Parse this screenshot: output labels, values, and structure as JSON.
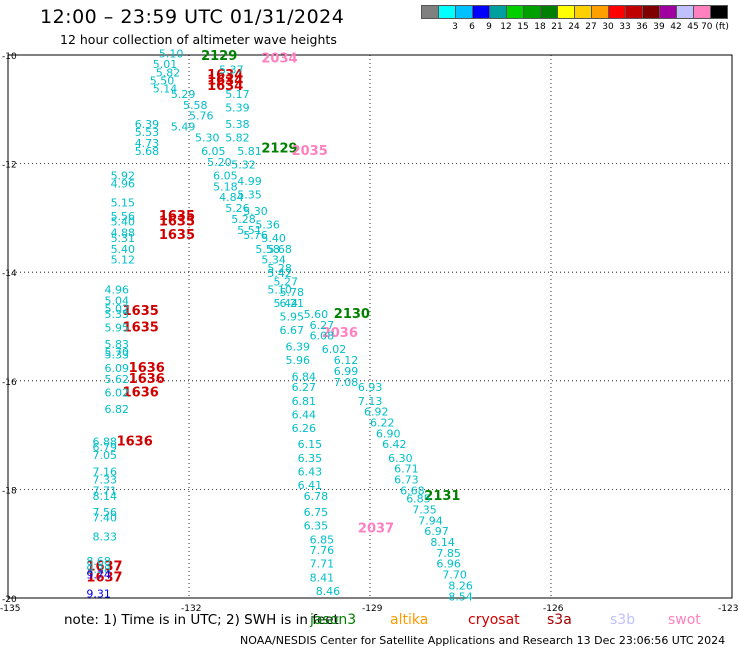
{
  "title": "12:00 – 23:59 UTC 01/31/2024",
  "subtitle": "12 hour collection of altimeter wave heights",
  "colorbar": {
    "labels": [
      "",
      "3",
      "6",
      "9",
      "12",
      "15",
      "18",
      "21",
      "24",
      "27",
      "30",
      "33",
      "36",
      "39",
      "42",
      "45",
      "70 (ft)"
    ],
    "colors": [
      "#808080",
      "#00ffff",
      "#00c0ff",
      "#0000ff",
      "#00a0a0",
      "#00d000",
      "#00a000",
      "#008000",
      "#ffff00",
      "#ffd000",
      "#ffa000",
      "#ff0000",
      "#c00000",
      "#800000",
      "#a000a0",
      "#c0c0ff",
      "#ff80c0",
      "#000000"
    ]
  },
  "footer": {
    "note": "note: 1) Time is in UTC; 2) SWH is in feet",
    "credit": "NOAA/NESDIS Center for Satellite Applications and Research   13 Dec 23:06:56 UTC 2024"
  },
  "chart_data": {
    "type": "scatter",
    "xlabel": "",
    "ylabel": "",
    "xlim": [
      -135,
      -123
    ],
    "ylim": [
      -20,
      -10
    ],
    "x_ticks": [
      -135,
      -132,
      -129,
      -126,
      -123
    ],
    "x_tick_labels": [
      "-135",
      "-132",
      "-129",
      "-126",
      "-123"
    ],
    "y_ticks": [
      -10,
      -12,
      -14,
      -16,
      -18,
      -20
    ],
    "y_tick_labels": [
      "-10",
      "-12",
      "-14",
      "-16",
      "-18",
      "-20"
    ],
    "grid": true,
    "series": [
      {
        "name": "jason3",
        "color": "#008000",
        "role": "time",
        "points": [
          {
            "x": -131.8,
            "y": -10.0,
            "label": "2129"
          },
          {
            "x": -130.8,
            "y": -11.7,
            "label": "2129"
          },
          {
            "x": -129.6,
            "y": -14.75,
            "label": "2130"
          },
          {
            "x": -128.1,
            "y": -18.1,
            "label": "2131"
          }
        ]
      },
      {
        "name": "cryosat",
        "color": "#d00000",
        "role": "time",
        "points": [
          {
            "x": -131.7,
            "y": -10.35,
            "label": "1634"
          },
          {
            "x": -131.7,
            "y": -10.45,
            "label": "1634"
          },
          {
            "x": -131.7,
            "y": -10.55,
            "label": "1634"
          },
          {
            "x": -132.5,
            "y": -12.95,
            "label": "1635"
          },
          {
            "x": -132.5,
            "y": -13.05,
            "label": "1635"
          },
          {
            "x": -132.5,
            "y": -13.3,
            "label": "1635"
          },
          {
            "x": -133.1,
            "y": -14.7,
            "label": "1635"
          },
          {
            "x": -133.1,
            "y": -15.0,
            "label": "1635"
          },
          {
            "x": -133.0,
            "y": -15.75,
            "label": "1636"
          },
          {
            "x": -133.0,
            "y": -15.95,
            "label": "1636"
          },
          {
            "x": -133.1,
            "y": -16.2,
            "label": "1636"
          },
          {
            "x": -133.2,
            "y": -17.1,
            "label": "1636"
          },
          {
            "x": -133.7,
            "y": -19.4,
            "label": "1637"
          },
          {
            "x": -133.7,
            "y": -19.6,
            "label": "1637"
          }
        ]
      },
      {
        "name": "swot",
        "color": "#ff80c0",
        "role": "time",
        "points": [
          {
            "x": -130.8,
            "y": -10.05,
            "label": "2034"
          },
          {
            "x": -130.3,
            "y": -11.75,
            "label": "2035"
          },
          {
            "x": -129.8,
            "y": -15.1,
            "label": "2036"
          },
          {
            "x": -129.2,
            "y": -18.7,
            "label": "2037"
          }
        ]
      },
      {
        "name": "SWH",
        "color": "#00bfc8",
        "role": "wave height (ft)",
        "points": [
          {
            "x": -132.5,
            "y": -9.95,
            "value": 5.1
          },
          {
            "x": -132.6,
            "y": -10.15,
            "value": 5.01
          },
          {
            "x": -132.55,
            "y": -10.3,
            "value": 5.82
          },
          {
            "x": -132.65,
            "y": -10.45,
            "value": 5.5
          },
          {
            "x": -132.6,
            "y": -10.6,
            "value": 5.14
          },
          {
            "x": -132.3,
            "y": -10.7,
            "value": 5.29
          },
          {
            "x": -131.5,
            "y": -10.25,
            "value": 5.37
          },
          {
            "x": -131.4,
            "y": -10.7,
            "value": 5.17
          },
          {
            "x": -132.1,
            "y": -10.9,
            "value": 5.58
          },
          {
            "x": -131.4,
            "y": -10.95,
            "value": 5.39
          },
          {
            "x": -132.0,
            "y": -11.1,
            "value": 5.76
          },
          {
            "x": -132.3,
            "y": -11.3,
            "value": 5.49
          },
          {
            "x": -131.4,
            "y": -11.25,
            "value": 5.38
          },
          {
            "x": -132.9,
            "y": -11.25,
            "value": 6.39
          },
          {
            "x": -132.9,
            "y": -11.4,
            "value": 5.53
          },
          {
            "x": -131.9,
            "y": -11.5,
            "value": 5.3
          },
          {
            "x": -131.4,
            "y": -11.5,
            "value": 5.82
          },
          {
            "x": -132.9,
            "y": -11.6,
            "value": 4.73
          },
          {
            "x": -132.9,
            "y": -11.75,
            "value": 5.68
          },
          {
            "x": -131.8,
            "y": -11.75,
            "value": 6.05
          },
          {
            "x": -131.2,
            "y": -11.75,
            "value": 5.81
          },
          {
            "x": -131.7,
            "y": -11.95,
            "value": 5.2
          },
          {
            "x": -131.3,
            "y": -12.0,
            "value": 5.32
          },
          {
            "x": -133.3,
            "y": -12.2,
            "value": 5.92
          },
          {
            "x": -131.6,
            "y": -12.2,
            "value": 6.05
          },
          {
            "x": -131.2,
            "y": -12.3,
            "value": 4.99
          },
          {
            "x": -133.3,
            "y": -12.35,
            "value": 4.96
          },
          {
            "x": -131.6,
            "y": -12.4,
            "value": 5.18
          },
          {
            "x": -131.2,
            "y": -12.55,
            "value": 5.35
          },
          {
            "x": -131.5,
            "y": -12.6,
            "value": 4.84
          },
          {
            "x": -133.3,
            "y": -12.7,
            "value": 5.15
          },
          {
            "x": -131.4,
            "y": -12.8,
            "value": 5.26
          },
          {
            "x": -131.1,
            "y": -12.85,
            "value": 5.3
          },
          {
            "x": -133.3,
            "y": -12.95,
            "value": 5.56
          },
          {
            "x": -133.3,
            "y": -13.05,
            "value": 5.4
          },
          {
            "x": -131.3,
            "y": -13.0,
            "value": 5.28
          },
          {
            "x": -130.9,
            "y": -13.1,
            "value": 5.36
          },
          {
            "x": -133.3,
            "y": -13.25,
            "value": 4.88
          },
          {
            "x": -133.3,
            "y": -13.35,
            "value": 5.31
          },
          {
            "x": -131.2,
            "y": -13.2,
            "value": 5.51
          },
          {
            "x": -130.8,
            "y": -13.35,
            "value": 5.4
          },
          {
            "x": -131.1,
            "y": -13.3,
            "value": 5.76
          },
          {
            "x": -133.3,
            "y": -13.55,
            "value": 5.4
          },
          {
            "x": -130.9,
            "y": -13.55,
            "value": 5.58
          },
          {
            "x": -130.7,
            "y": -13.55,
            "value": 5.68
          },
          {
            "x": -133.3,
            "y": -13.75,
            "value": 5.12
          },
          {
            "x": -130.8,
            "y": -13.75,
            "value": 5.34
          },
          {
            "x": -130.7,
            "y": -13.9,
            "value": 5.28
          },
          {
            "x": -130.7,
            "y": -14.0,
            "value": 5.42
          },
          {
            "x": -130.6,
            "y": -14.15,
            "value": 5.27
          },
          {
            "x": -130.5,
            "y": -14.35,
            "value": 5.78
          },
          {
            "x": -130.7,
            "y": -14.3,
            "value": 5.1
          },
          {
            "x": -133.4,
            "y": -14.3,
            "value": 4.96
          },
          {
            "x": -133.4,
            "y": -14.5,
            "value": 5.04
          },
          {
            "x": -133.4,
            "y": -14.65,
            "value": 5.02
          },
          {
            "x": -133.4,
            "y": -14.75,
            "value": 5.35
          },
          {
            "x": -130.6,
            "y": -14.55,
            "value": 5.44
          },
          {
            "x": -130.5,
            "y": -14.55,
            "value": 6.21
          },
          {
            "x": -130.5,
            "y": -14.8,
            "value": 5.95
          },
          {
            "x": -130.1,
            "y": -14.75,
            "value": 5.6
          },
          {
            "x": -133.4,
            "y": -15.0,
            "value": 5.95
          },
          {
            "x": -130.0,
            "y": -14.95,
            "value": 6.27
          },
          {
            "x": -130.5,
            "y": -15.05,
            "value": 6.67
          },
          {
            "x": -130.0,
            "y": -15.15,
            "value": 6.08
          },
          {
            "x": -133.4,
            "y": -15.3,
            "value": 5.83
          },
          {
            "x": -133.4,
            "y": -15.45,
            "value": 5.7
          },
          {
            "x": -133.4,
            "y": -15.5,
            "value": 5.33
          },
          {
            "x": -130.4,
            "y": -15.35,
            "value": 6.39
          },
          {
            "x": -129.8,
            "y": -15.4,
            "value": 6.02
          },
          {
            "x": -129.6,
            "y": -15.6,
            "value": 6.12
          },
          {
            "x": -130.4,
            "y": -15.6,
            "value": 5.96
          },
          {
            "x": -133.4,
            "y": -15.75,
            "value": 6.09
          },
          {
            "x": -129.6,
            "y": -15.8,
            "value": 6.99
          },
          {
            "x": -133.4,
            "y": -15.95,
            "value": 5.62
          },
          {
            "x": -130.3,
            "y": -15.9,
            "value": 6.84
          },
          {
            "x": -129.6,
            "y": -16.0,
            "value": 7.08
          },
          {
            "x": -130.3,
            "y": -16.1,
            "value": 6.27
          },
          {
            "x": -129.2,
            "y": -16.1,
            "value": 6.93
          },
          {
            "x": -133.4,
            "y": -16.2,
            "value": 6.02
          },
          {
            "x": -130.3,
            "y": -16.35,
            "value": 6.81
          },
          {
            "x": -129.2,
            "y": -16.35,
            "value": 7.13
          },
          {
            "x": -133.4,
            "y": -16.5,
            "value": 6.82
          },
          {
            "x": -130.3,
            "y": -16.6,
            "value": 6.44
          },
          {
            "x": -129.1,
            "y": -16.55,
            "value": 6.92
          },
          {
            "x": -129.0,
            "y": -16.75,
            "value": 6.22
          },
          {
            "x": -130.3,
            "y": -16.85,
            "value": 6.26
          },
          {
            "x": -128.9,
            "y": -16.95,
            "value": 6.9
          },
          {
            "x": -133.6,
            "y": -17.1,
            "value": 6.88
          },
          {
            "x": -133.6,
            "y": -17.2,
            "value": 6.79
          },
          {
            "x": -130.2,
            "y": -17.15,
            "value": 6.15
          },
          {
            "x": -128.8,
            "y": -17.15,
            "value": 6.42
          },
          {
            "x": -133.6,
            "y": -17.35,
            "value": 7.05
          },
          {
            "x": -130.2,
            "y": -17.4,
            "value": 6.35
          },
          {
            "x": -128.7,
            "y": -17.4,
            "value": 6.3
          },
          {
            "x": -133.6,
            "y": -17.65,
            "value": 7.16
          },
          {
            "x": -130.2,
            "y": -17.65,
            "value": 6.43
          },
          {
            "x": -128.6,
            "y": -17.6,
            "value": 6.71
          },
          {
            "x": -133.6,
            "y": -17.8,
            "value": 7.33
          },
          {
            "x": -128.6,
            "y": -17.8,
            "value": 6.73
          },
          {
            "x": -130.2,
            "y": -17.9,
            "value": 6.41
          },
          {
            "x": -133.6,
            "y": -18.0,
            "value": 7.71
          },
          {
            "x": -128.5,
            "y": -18.0,
            "value": 6.68
          },
          {
            "x": -133.6,
            "y": -18.1,
            "value": 8.14
          },
          {
            "x": -130.1,
            "y": -18.1,
            "value": 6.78
          },
          {
            "x": -128.4,
            "y": -18.15,
            "value": 6.85
          },
          {
            "x": -128.3,
            "y": -18.35,
            "value": 7.35
          },
          {
            "x": -133.6,
            "y": -18.4,
            "value": 7.56
          },
          {
            "x": -130.1,
            "y": -18.4,
            "value": 6.75
          },
          {
            "x": -133.6,
            "y": -18.5,
            "value": 7.4
          },
          {
            "x": -128.2,
            "y": -18.55,
            "value": 7.94
          },
          {
            "x": -130.1,
            "y": -18.65,
            "value": 6.35
          },
          {
            "x": -128.1,
            "y": -18.75,
            "value": 6.97
          },
          {
            "x": -133.6,
            "y": -18.85,
            "value": 8.33
          },
          {
            "x": -130.0,
            "y": -18.9,
            "value": 6.85
          },
          {
            "x": -128.0,
            "y": -18.95,
            "value": 8.14
          },
          {
            "x": -130.0,
            "y": -19.1,
            "value": 7.76
          },
          {
            "x": -127.9,
            "y": -19.15,
            "value": 7.85
          },
          {
            "x": -133.7,
            "y": -19.3,
            "value": 8.68
          },
          {
            "x": -130.0,
            "y": -19.35,
            "value": 7.71
          },
          {
            "x": -127.9,
            "y": -19.35,
            "value": 6.96
          },
          {
            "x": -133.7,
            "y": -19.45,
            "value": 9.38
          },
          {
            "x": -127.8,
            "y": -19.55,
            "value": 7.7
          },
          {
            "x": -130.0,
            "y": -19.6,
            "value": 8.41
          },
          {
            "x": -127.7,
            "y": -19.75,
            "value": 8.26
          },
          {
            "x": -129.9,
            "y": -19.85,
            "value": 8.46
          },
          {
            "x": -127.7,
            "y": -19.95,
            "value": 8.54
          }
        ]
      },
      {
        "name": "SWH-blue",
        "color": "#0000ff",
        "role": "wave height (ft)",
        "points": [
          {
            "x": -133.7,
            "y": -19.55,
            "value": 9.74
          },
          {
            "x": -133.7,
            "y": -19.9,
            "value": 9.31
          }
        ]
      }
    ],
    "sat_legend": [
      {
        "name": "jason3",
        "color": "#008000"
      },
      {
        "name": "altika",
        "color": "#ff9900"
      },
      {
        "name": "cryosat",
        "color": "#d00000"
      },
      {
        "name": "s3a",
        "color": "#a00000"
      },
      {
        "name": "s3b",
        "color": "#c0c0ff"
      },
      {
        "name": "swot",
        "color": "#ff80c0"
      }
    ]
  }
}
